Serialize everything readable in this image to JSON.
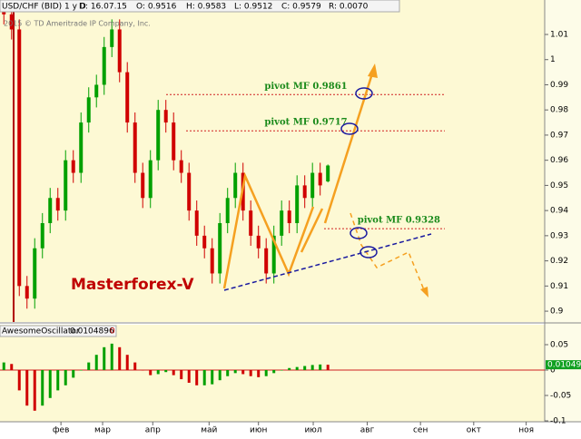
{
  "header": {
    "symbol": "USD/CHF (BID) 1 у D",
    "date": "D: 16.07.15",
    "open": "O: 0.9516",
    "high": "H: 0.9583",
    "low": "L: 0.9512",
    "close": "C: 0.9579",
    "range": "R: 0.0070",
    "copyright": "2015 © TD Ameritrade IP Company, Inc.",
    "watermark": "Masterforex-V"
  },
  "chart_data": [
    {
      "type": "candlestick",
      "up_color": "#00a000",
      "down_color": "#d00000",
      "open": [
        1.022,
        1.018,
        1.012,
        0.91,
        0.905,
        0.925,
        0.935,
        0.945,
        0.94,
        0.96,
        0.955,
        0.975,
        0.985,
        0.99,
        1.005,
        1.012,
        0.995,
        0.975,
        0.955,
        0.945,
        0.96,
        0.98,
        0.975,
        0.96,
        0.955,
        0.94,
        0.93,
        0.925,
        0.915,
        0.935,
        0.945,
        0.955,
        0.94,
        0.93,
        0.925,
        0.915,
        0.93,
        0.94,
        0.935,
        0.95,
        0.945,
        0.955,
        0.9516
      ],
      "high": [
        1.026,
        1.022,
        1.016,
        0.914,
        0.929,
        0.939,
        0.949,
        0.949,
        0.964,
        0.964,
        0.979,
        0.989,
        0.994,
        1.009,
        1.016,
        1.016,
        0.999,
        0.979,
        0.959,
        0.964,
        0.984,
        0.984,
        0.979,
        0.964,
        0.959,
        0.944,
        0.934,
        0.929,
        0.939,
        0.949,
        0.959,
        0.959,
        0.944,
        0.934,
        0.929,
        0.934,
        0.944,
        0.944,
        0.954,
        0.954,
        0.959,
        0.959,
        0.9583
      ],
      "low": [
        1.014,
        1.008,
        0.906,
        0.901,
        0.901,
        0.921,
        0.931,
        0.936,
        0.936,
        0.951,
        0.951,
        0.971,
        0.981,
        0.986,
        1.001,
        0.991,
        0.971,
        0.951,
        0.941,
        0.941,
        0.956,
        0.971,
        0.956,
        0.951,
        0.936,
        0.926,
        0.921,
        0.911,
        0.911,
        0.931,
        0.941,
        0.936,
        0.926,
        0.921,
        0.911,
        0.911,
        0.926,
        0.931,
        0.931,
        0.941,
        0.941,
        0.946,
        0.9512
      ],
      "close": [
        1.018,
        1.012,
        0.91,
        0.905,
        0.925,
        0.935,
        0.945,
        0.94,
        0.96,
        0.955,
        0.975,
        0.985,
        0.99,
        1.005,
        1.012,
        0.995,
        0.975,
        0.955,
        0.945,
        0.96,
        0.98,
        0.975,
        0.96,
        0.955,
        0.94,
        0.93,
        0.925,
        0.915,
        0.935,
        0.945,
        0.955,
        0.94,
        0.93,
        0.925,
        0.915,
        0.93,
        0.94,
        0.935,
        0.95,
        0.945,
        0.955,
        0.95,
        0.9579
      ],
      "ylim": [
        0.8957,
        1.0237
      ],
      "yticks": [
        0.9,
        0.91,
        0.92,
        0.93,
        0.94,
        0.95,
        0.96,
        0.97,
        0.98,
        0.99,
        1,
        1.01
      ],
      "xlim": [
        -0.5,
        70.1
      ],
      "xticks": [
        {
          "value": 7.4,
          "label": "фев"
        },
        {
          "value": 12.8,
          "label": "мар"
        },
        {
          "value": 19.3,
          "label": "апр"
        },
        {
          "value": 26.6,
          "label": "май"
        },
        {
          "value": 33,
          "label": "июн"
        },
        {
          "value": 40.1,
          "label": "июл"
        },
        {
          "value": 47.1,
          "label": "авг"
        },
        {
          "value": 54,
          "label": "сен"
        },
        {
          "value": 60.9,
          "label": "окт"
        },
        {
          "value": 67.7,
          "label": "ноя"
        }
      ],
      "pivots": [
        {
          "label": "pivot MF 0.9861",
          "value": 0.9861
        },
        {
          "label": "pivot MF 0.9717",
          "value": 0.9717
        },
        {
          "label": "pivot MF 0.9328",
          "value": 0.9328
        }
      ]
    },
    {
      "type": "histogram",
      "name": "AwesomeOscillator",
      "last_value": "0.0104896",
      "last_label": "0.01049",
      "zero_flag": "0",
      "up_color": "#00a000",
      "down_color": "#d00000",
      "values": [
        0.015,
        0.012,
        -0.04,
        -0.07,
        -0.08,
        -0.07,
        -0.055,
        -0.04,
        -0.03,
        -0.015,
        0.0,
        0.015,
        0.03,
        0.045,
        0.052,
        0.045,
        0.03,
        0.015,
        0.0,
        -0.01,
        -0.008,
        -0.004,
        -0.01,
        -0.018,
        -0.025,
        -0.03,
        -0.03,
        -0.028,
        -0.02,
        -0.012,
        -0.006,
        -0.008,
        -0.012,
        -0.014,
        -0.012,
        -0.006,
        0.0,
        0.004,
        0.006,
        0.008,
        0.01,
        0.011,
        0.0104896
      ],
      "ylim": [
        -0.1018,
        0.0893
      ],
      "yticks": [
        -0.1,
        -0.05,
        0,
        0.05
      ]
    }
  ]
}
